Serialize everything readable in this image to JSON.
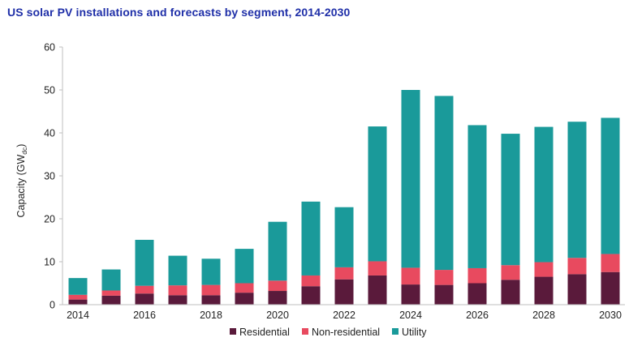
{
  "chart_data": {
    "type": "bar",
    "stacked": true,
    "title": "US solar PV installations and forecasts by segment, 2014-2030",
    "ylabel": "Capacity (GW",
    "ylabel_sub": "dc",
    "ylabel_end": ")",
    "xlabel": "",
    "ylim": [
      0,
      60
    ],
    "yticks": [
      0,
      10,
      20,
      30,
      40,
      50,
      60
    ],
    "grid": false,
    "legend_position": "bottom",
    "categories": [
      "2014",
      "2015",
      "2016",
      "2017",
      "2018",
      "2019",
      "2020",
      "2021",
      "2022",
      "2023",
      "2024",
      "2025",
      "2026",
      "2027",
      "2028",
      "2029",
      "2030"
    ],
    "xtick_labels": [
      "2014",
      "2016",
      "2018",
      "2020",
      "2022",
      "2024",
      "2026",
      "2028",
      "2030"
    ],
    "series": [
      {
        "name": "Residential",
        "color": "#5a1a3b",
        "values": [
          1.2,
          2.1,
          2.6,
          2.2,
          2.2,
          2.8,
          3.2,
          4.3,
          5.9,
          6.8,
          4.7,
          4.6,
          5.0,
          5.8,
          6.5,
          7.1,
          7.6
        ]
      },
      {
        "name": "Non-residential",
        "color": "#e84a5f",
        "values": [
          1.1,
          1.2,
          1.8,
          2.3,
          2.4,
          2.2,
          2.4,
          2.5,
          2.8,
          3.3,
          3.9,
          3.5,
          3.5,
          3.4,
          3.4,
          3.8,
          4.2
        ]
      },
      {
        "name": "Utility",
        "color": "#1a9a9a",
        "values": [
          3.9,
          4.9,
          10.7,
          6.9,
          6.1,
          8.0,
          13.7,
          17.2,
          14.0,
          31.4,
          41.4,
          40.5,
          33.3,
          30.6,
          31.5,
          31.7,
          31.7
        ]
      }
    ]
  }
}
